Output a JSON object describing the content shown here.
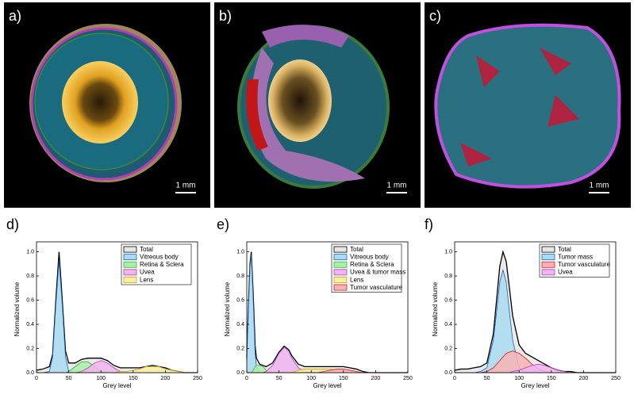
{
  "panels": [
    {
      "label": "a)",
      "scale_bar": "1 mm"
    },
    {
      "label": "b)",
      "scale_bar": "1 mm"
    },
    {
      "label": "c)",
      "scale_bar": "1 mm"
    }
  ],
  "chart_data": [
    {
      "type": "area",
      "panel_label": "d)",
      "xlabel": "Grey level",
      "ylabel": "Normalized volume",
      "xlim": [
        0,
        250
      ],
      "xticks": [
        0,
        50,
        100,
        150,
        200,
        250
      ],
      "ylim": [
        0,
        1.05
      ],
      "yticks": [
        {
          "value": 0,
          "label": "0.0"
        },
        0.2,
        0.4,
        0.6,
        0.8,
        {
          "value": 1,
          "label": "1.0"
        }
      ],
      "legend": "upper right",
      "x": [
        0,
        10,
        20,
        25,
        30,
        35,
        40,
        45,
        50,
        60,
        70,
        80,
        90,
        100,
        110,
        120,
        130,
        140,
        150,
        160,
        170,
        180,
        190,
        200,
        210,
        220,
        230,
        240,
        250
      ],
      "series": [
        {
          "name": "Total",
          "color": "#e6e6e6",
          "edgecolor": "#000000",
          "values": [
            0.02,
            0.03,
            0.05,
            0.15,
            0.6,
            1.0,
            0.6,
            0.18,
            0.08,
            0.08,
            0.11,
            0.12,
            0.12,
            0.12,
            0.1,
            0.06,
            0.04,
            0.04,
            0.04,
            0.04,
            0.05,
            0.06,
            0.05,
            0.04,
            0.02,
            0.01,
            0,
            0,
            0
          ]
        },
        {
          "name": "Vitreous body",
          "color": "#a8dcf0",
          "edgecolor": "#1f5fbf",
          "values": [
            0,
            0,
            0.01,
            0.13,
            0.56,
            0.93,
            0.56,
            0.13,
            0.01,
            0,
            0,
            0,
            0,
            0,
            0,
            0,
            0,
            0,
            0,
            0,
            0,
            0,
            0,
            0,
            0,
            0,
            0,
            0,
            0
          ]
        },
        {
          "name": "Retina & Sclera",
          "color": "#a8f0a8",
          "edgecolor": "#3cb043",
          "values": [
            0,
            0,
            0,
            0,
            0,
            0,
            0,
            0,
            0.01,
            0.05,
            0.09,
            0.09,
            0.05,
            0.01,
            0,
            0,
            0,
            0,
            0,
            0,
            0,
            0,
            0,
            0,
            0,
            0,
            0,
            0,
            0
          ]
        },
        {
          "name": "Uvea",
          "color": "#f0b4f0",
          "edgecolor": "#b040b0",
          "values": [
            0,
            0,
            0,
            0,
            0,
            0,
            0,
            0,
            0,
            0,
            0.01,
            0.04,
            0.08,
            0.1,
            0.08,
            0.04,
            0.01,
            0,
            0,
            0,
            0,
            0,
            0,
            0,
            0,
            0,
            0,
            0,
            0
          ]
        },
        {
          "name": "Lens",
          "color": "#f8f0a0",
          "edgecolor": "#d0a020",
          "values": [
            0,
            0,
            0,
            0,
            0,
            0,
            0,
            0,
            0,
            0,
            0,
            0,
            0,
            0,
            0,
            0,
            0.01,
            0.01,
            0.02,
            0.03,
            0.05,
            0.05,
            0.05,
            0.03,
            0.02,
            0.01,
            0,
            0,
            0
          ]
        }
      ]
    },
    {
      "type": "area",
      "panel_label": "e)",
      "xlabel": "Grey level",
      "ylabel": "Normalized volume",
      "xlim": [
        0,
        250
      ],
      "xticks": [
        0,
        50,
        100,
        150,
        200,
        250
      ],
      "ylim": [
        0,
        1.05
      ],
      "yticks": [
        {
          "value": 0,
          "label": "0.0"
        },
        0.2,
        0.4,
        0.6,
        0.8,
        {
          "value": 1,
          "label": "1.0"
        }
      ],
      "legend": "upper right",
      "x": [
        0,
        3,
        5,
        7,
        10,
        13,
        15,
        20,
        25,
        30,
        40,
        50,
        58,
        65,
        70,
        80,
        90,
        100,
        110,
        120,
        130,
        140,
        150,
        160,
        170,
        180,
        190,
        200,
        210,
        220,
        230,
        240,
        250
      ],
      "series": [
        {
          "name": "Total",
          "color": "#e6e6e6",
          "edgecolor": "#000000",
          "values": [
            0.12,
            0.62,
            0.9,
            1.0,
            0.65,
            0.22,
            0.12,
            0.07,
            0.06,
            0.05,
            0.08,
            0.17,
            0.22,
            0.19,
            0.14,
            0.07,
            0.05,
            0.05,
            0.05,
            0.05,
            0.05,
            0.05,
            0.05,
            0.04,
            0.03,
            0.01,
            0,
            0,
            0,
            0,
            0,
            0,
            0
          ]
        },
        {
          "name": "Vitreous body",
          "color": "#a8dcf0",
          "edgecolor": "#1f5fbf",
          "values": [
            0.1,
            0.6,
            0.87,
            0.98,
            0.6,
            0.15,
            0.05,
            0,
            0,
            0,
            0,
            0,
            0,
            0,
            0,
            0,
            0,
            0,
            0,
            0,
            0,
            0,
            0,
            0,
            0,
            0,
            0,
            0,
            0,
            0,
            0,
            0,
            0
          ]
        },
        {
          "name": "Retina & Sclera",
          "color": "#a8f0a8",
          "edgecolor": "#3cb043",
          "values": [
            0,
            0,
            0,
            0,
            0.02,
            0.05,
            0.06,
            0.06,
            0.05,
            0.02,
            0,
            0,
            0,
            0,
            0,
            0,
            0,
            0,
            0,
            0,
            0,
            0,
            0,
            0,
            0,
            0,
            0,
            0,
            0,
            0,
            0,
            0,
            0
          ]
        },
        {
          "name": "Uvea & tumor mass",
          "color": "#f0b4f0",
          "edgecolor": "#b040b0",
          "values": [
            0,
            0,
            0,
            0,
            0,
            0,
            0,
            0,
            0,
            0.01,
            0.06,
            0.16,
            0.21,
            0.18,
            0.12,
            0.04,
            0.01,
            0,
            0,
            0,
            0,
            0,
            0,
            0,
            0,
            0,
            0,
            0,
            0,
            0,
            0,
            0,
            0
          ]
        },
        {
          "name": "Lens",
          "color": "#f8f0a0",
          "edgecolor": "#d0a020",
          "values": [
            0,
            0,
            0,
            0,
            0,
            0,
            0,
            0,
            0,
            0,
            0,
            0,
            0,
            0,
            0,
            0.02,
            0.03,
            0.03,
            0.03,
            0.03,
            0.03,
            0.02,
            0.01,
            0,
            0,
            0,
            0,
            0,
            0,
            0,
            0,
            0,
            0
          ]
        },
        {
          "name": "Tumor vasculature",
          "color": "#f8b4b4",
          "edgecolor": "#d02020",
          "values": [
            0,
            0,
            0,
            0,
            0,
            0,
            0,
            0,
            0,
            0,
            0,
            0,
            0,
            0,
            0,
            0,
            0,
            0,
            0,
            0.01,
            0.02,
            0.03,
            0.03,
            0.02,
            0.01,
            0,
            0,
            0,
            0,
            0,
            0,
            0,
            0
          ]
        }
      ]
    },
    {
      "type": "area",
      "panel_label": "f)",
      "xlabel": "Grey level",
      "ylabel": "Normalized volume",
      "xlim": [
        0,
        250
      ],
      "xticks": [
        0,
        50,
        100,
        150,
        200,
        250
      ],
      "ylim": [
        0,
        1.05
      ],
      "yticks": [
        {
          "value": 0,
          "label": "0.0"
        },
        0.2,
        0.4,
        0.6,
        0.8,
        {
          "value": 1,
          "label": "1.0"
        }
      ],
      "legend": "upper right",
      "x": [
        0,
        10,
        20,
        30,
        40,
        50,
        60,
        65,
        70,
        75,
        80,
        85,
        90,
        100,
        110,
        120,
        130,
        140,
        150,
        160,
        170,
        180,
        190,
        200,
        210,
        220,
        230,
        240,
        250
      ],
      "series": [
        {
          "name": "Total",
          "color": "#e6e6e6",
          "edgecolor": "#000000",
          "values": [
            0.02,
            0.03,
            0.03,
            0.04,
            0.05,
            0.08,
            0.32,
            0.6,
            0.88,
            1.0,
            0.92,
            0.7,
            0.47,
            0.23,
            0.16,
            0.13,
            0.1,
            0.07,
            0.04,
            0.02,
            0.01,
            0.01,
            0,
            0,
            0,
            0,
            0,
            0,
            0
          ]
        },
        {
          "name": "Tumor mass",
          "color": "#a8dcf0",
          "edgecolor": "#1f5fbf",
          "values": [
            0,
            0,
            0,
            0,
            0.01,
            0.04,
            0.27,
            0.5,
            0.75,
            0.85,
            0.75,
            0.5,
            0.27,
            0.04,
            0,
            0,
            0,
            0,
            0,
            0,
            0,
            0,
            0,
            0,
            0,
            0,
            0,
            0,
            0
          ]
        },
        {
          "name": "Tumor vasculature",
          "color": "#f8b4b4",
          "edgecolor": "#d02020",
          "values": [
            0,
            0,
            0,
            0,
            0,
            0.01,
            0.04,
            0.07,
            0.1,
            0.13,
            0.16,
            0.17,
            0.18,
            0.16,
            0.12,
            0.07,
            0.03,
            0.01,
            0,
            0,
            0,
            0,
            0,
            0,
            0,
            0,
            0,
            0,
            0
          ]
        },
        {
          "name": "Uvea",
          "color": "#f0b4f0",
          "edgecolor": "#b040b0",
          "values": [
            0,
            0,
            0,
            0,
            0,
            0,
            0,
            0,
            0,
            0,
            0,
            0,
            0.01,
            0.02,
            0.04,
            0.06,
            0.07,
            0.06,
            0.04,
            0.02,
            0.01,
            0,
            0,
            0,
            0,
            0,
            0,
            0,
            0
          ]
        }
      ]
    }
  ]
}
